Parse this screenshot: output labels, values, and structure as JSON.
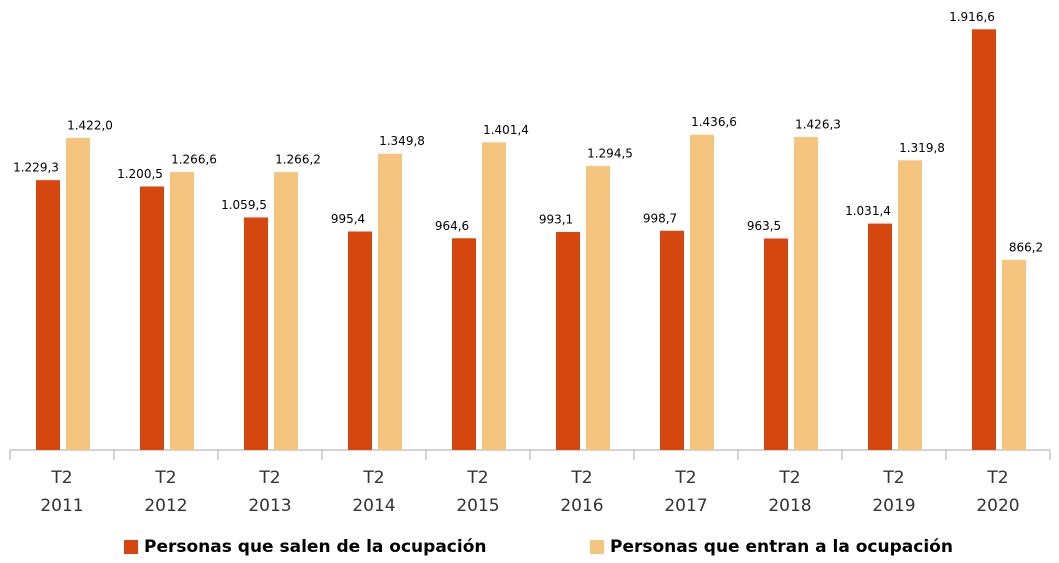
{
  "chart_data": {
    "type": "bar",
    "categories": [
      [
        "T2",
        "2011"
      ],
      [
        "T2",
        "2012"
      ],
      [
        "T2",
        "2013"
      ],
      [
        "T2",
        "2014"
      ],
      [
        "T2",
        "2015"
      ],
      [
        "T2",
        "2016"
      ],
      [
        "T2",
        "2017"
      ],
      [
        "T2",
        "2018"
      ],
      [
        "T2",
        "2019"
      ],
      [
        "T2",
        "2020"
      ]
    ],
    "series": [
      {
        "name": "Personas que salen de la ocupación",
        "color": "#d5470f",
        "values": [
          1229.3,
          1200.5,
          1059.5,
          995.4,
          964.6,
          993.1,
          998.7,
          963.5,
          1031.4,
          1916.6
        ],
        "value_labels": [
          "1.229,3",
          "1.200,5",
          "1.059,5",
          "995,4",
          "964,6",
          "993,1",
          "998,7",
          "963,5",
          "1.031,4",
          "1.916,6"
        ]
      },
      {
        "name": "Personas que entran a la ocupación",
        "color": "#f5c57f",
        "values": [
          1422.0,
          1266.6,
          1266.2,
          1349.8,
          1401.4,
          1294.5,
          1436.6,
          1426.3,
          1319.8,
          866.2
        ],
        "value_labels": [
          "1.422,0",
          "1.266,6",
          "1.266,2",
          "1.349,8",
          "1.401,4",
          "1.294,5",
          "1.436,6",
          "1.426,3",
          "1.319,8",
          "866,2"
        ]
      }
    ],
    "ylim": [
      0,
      2000
    ],
    "legend": "bottom"
  }
}
